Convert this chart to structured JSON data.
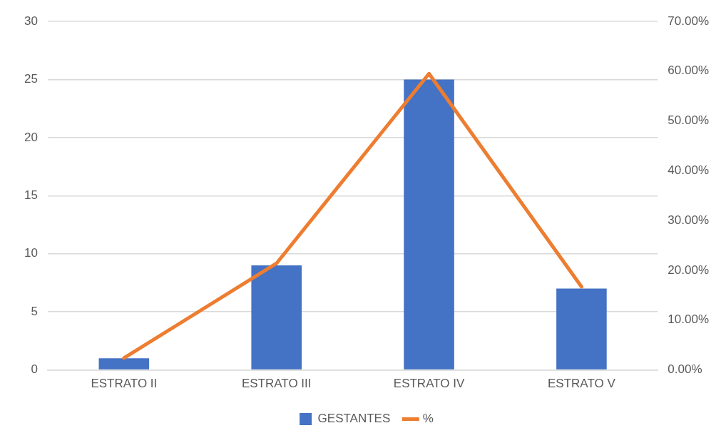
{
  "chart_data": {
    "type": "bar",
    "categories": [
      "ESTRATO II",
      "ESTRATO III",
      "ESTRATO IV",
      "ESTRATO V"
    ],
    "series": [
      {
        "name": "GESTANTES",
        "color": "#4472c4",
        "values": [
          1,
          9,
          25,
          7
        ]
      },
      {
        "name": "%",
        "type": "line",
        "axis": "y2",
        "color": "#ed7d31",
        "values": [
          2.4,
          21.4,
          59.5,
          16.7
        ]
      }
    ],
    "ylim": [
      0,
      30
    ],
    "yticks": [
      0,
      5,
      10,
      15,
      20,
      25,
      30
    ],
    "y2lim": [
      0,
      70
    ],
    "y2ticks": [
      {
        "value": 0,
        "label": "0.00%"
      },
      {
        "value": 10,
        "label": "10.00%"
      },
      {
        "value": 20,
        "label": "20.00%"
      },
      {
        "value": 30,
        "label": "30.00%"
      },
      {
        "value": 40,
        "label": "40.00%"
      },
      {
        "value": 50,
        "label": "50.00%"
      },
      {
        "value": 60,
        "label": "60.00%"
      },
      {
        "value": 70,
        "label": "70.00%"
      }
    ],
    "grid": "y",
    "legend": "bottom",
    "marker": "none",
    "line_style": "solid"
  }
}
